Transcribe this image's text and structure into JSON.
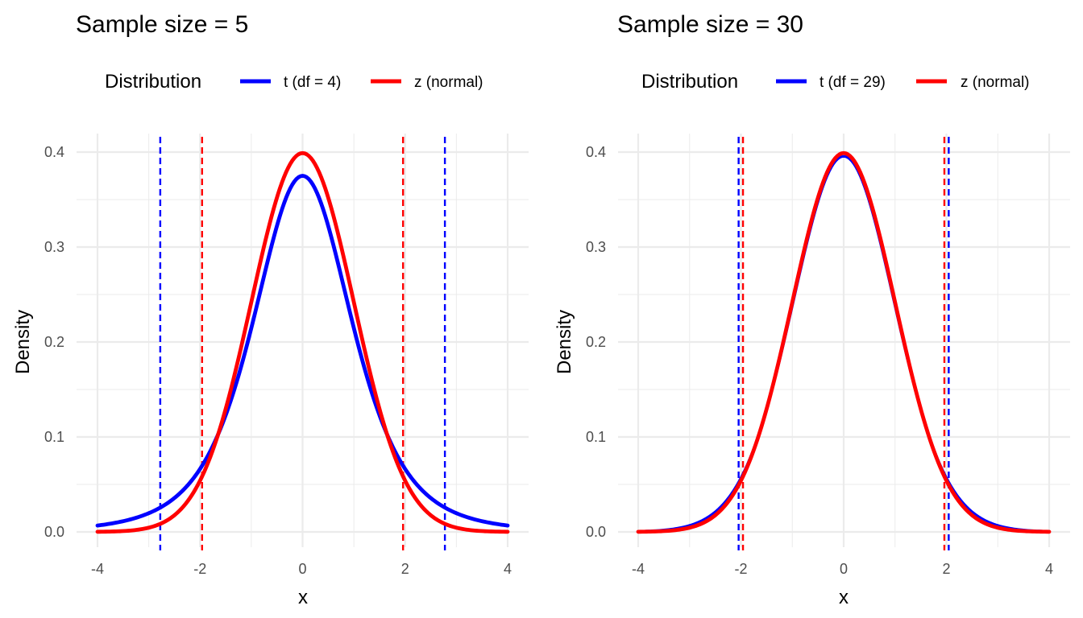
{
  "colors": {
    "t": "#0000FF",
    "z": "#FF0000",
    "grid_major": "#EBEBEB",
    "grid_minor": "#F4F4F4",
    "tick_text": "#4D4D4D",
    "background": "#FFFFFF"
  },
  "chart_data": [
    {
      "type": "line",
      "title": "Sample size = 5",
      "xlabel": "x",
      "ylabel": "Density",
      "xlim": [
        -4,
        4
      ],
      "ylim": [
        0,
        0.4
      ],
      "x_ticks": [
        "-4",
        "-2",
        "0",
        "2",
        "4"
      ],
      "y_ticks": [
        "0.0",
        "0.1",
        "0.2",
        "0.3",
        "0.4"
      ],
      "grid": true,
      "legend": {
        "title": "Distribution",
        "position": "top"
      },
      "series": [
        {
          "name": "t (df = 4)",
          "key": "t",
          "distribution": "t",
          "df": 4,
          "x": [
            -4.0,
            -3.5,
            -3.0,
            -2.5,
            -2.0,
            -1.5,
            -1.0,
            -0.5,
            0.0,
            0.5,
            1.0,
            1.5,
            2.0,
            2.5,
            3.0,
            3.5,
            4.0
          ],
          "y": [
            0.0066,
            0.0109,
            0.0197,
            0.0361,
            0.0663,
            0.1174,
            0.2147,
            0.3222,
            0.375,
            0.3222,
            0.2147,
            0.1174,
            0.0663,
            0.0361,
            0.0197,
            0.0109,
            0.0066
          ]
        },
        {
          "name": "z (normal)",
          "key": "z",
          "distribution": "normal",
          "x": [
            -4.0,
            -3.5,
            -3.0,
            -2.5,
            -2.0,
            -1.5,
            -1.0,
            -0.5,
            0.0,
            0.5,
            1.0,
            1.5,
            2.0,
            2.5,
            3.0,
            3.5,
            4.0
          ],
          "y": [
            0.0001,
            0.0009,
            0.0044,
            0.0175,
            0.054,
            0.1295,
            0.242,
            0.3521,
            0.3989,
            0.3521,
            0.242,
            0.1295,
            0.054,
            0.0175,
            0.0044,
            0.0009,
            0.0001
          ]
        }
      ],
      "vlines": [
        {
          "series": "t",
          "x": -2.776
        },
        {
          "series": "t",
          "x": 2.776
        },
        {
          "series": "z",
          "x": -1.96
        },
        {
          "series": "z",
          "x": 1.96
        }
      ]
    },
    {
      "type": "line",
      "title": "Sample size = 30",
      "xlabel": "x",
      "ylabel": "Density",
      "xlim": [
        -4,
        4
      ],
      "ylim": [
        0,
        0.4
      ],
      "x_ticks": [
        "-4",
        "-2",
        "0",
        "2",
        "4"
      ],
      "y_ticks": [
        "0.0",
        "0.1",
        "0.2",
        "0.3",
        "0.4"
      ],
      "grid": true,
      "legend": {
        "title": "Distribution",
        "position": "top"
      },
      "series": [
        {
          "name": "t (df = 29)",
          "key": "t",
          "distribution": "t",
          "df": 29,
          "x": [
            -4.0,
            -3.5,
            -3.0,
            -2.5,
            -2.0,
            -1.5,
            -1.0,
            -0.5,
            0.0,
            0.5,
            1.0,
            1.5,
            2.0,
            2.5,
            3.0,
            3.5,
            4.0
          ],
          "y": [
            0.0004,
            0.0018,
            0.0066,
            0.0206,
            0.0553,
            0.1262,
            0.2371,
            0.3479,
            0.3956,
            0.3479,
            0.2371,
            0.1262,
            0.0553,
            0.0206,
            0.0066,
            0.0018,
            0.0004
          ]
        },
        {
          "name": "z (normal)",
          "key": "z",
          "distribution": "normal",
          "x": [
            -4.0,
            -3.5,
            -3.0,
            -2.5,
            -2.0,
            -1.5,
            -1.0,
            -0.5,
            0.0,
            0.5,
            1.0,
            1.5,
            2.0,
            2.5,
            3.0,
            3.5,
            4.0
          ],
          "y": [
            0.0001,
            0.0009,
            0.0044,
            0.0175,
            0.054,
            0.1295,
            0.242,
            0.3521,
            0.3989,
            0.3521,
            0.242,
            0.1295,
            0.054,
            0.0175,
            0.0044,
            0.0009,
            0.0001
          ]
        }
      ],
      "vlines": [
        {
          "series": "t",
          "x": -2.045
        },
        {
          "series": "t",
          "x": 2.045
        },
        {
          "series": "z",
          "x": -1.96
        },
        {
          "series": "z",
          "x": 1.96
        }
      ]
    }
  ]
}
